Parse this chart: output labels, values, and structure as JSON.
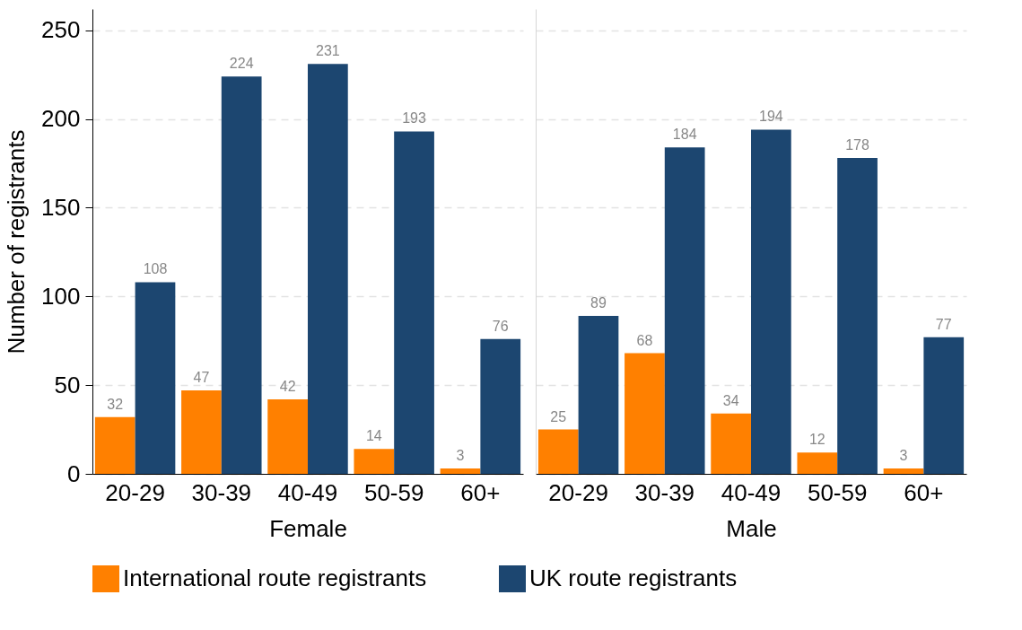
{
  "chart_data": [
    {
      "type": "bar",
      "xlabel": "Female",
      "ylabel": "Number of registrants",
      "categories": [
        "20-29",
        "30-39",
        "40-49",
        "50-59",
        "60+"
      ],
      "series": [
        {
          "name": "International route registrants",
          "color": "#ff8000",
          "values": [
            32,
            47,
            42,
            14,
            3
          ]
        },
        {
          "name": "UK route registrants",
          "color": "#1c4670",
          "values": [
            108,
            224,
            231,
            193,
            76
          ]
        }
      ],
      "ylim": [
        0,
        262
      ],
      "yticks": [
        0,
        50,
        100,
        150,
        200,
        250
      ],
      "grid": "y",
      "legend": "bottom",
      "data_labels": true
    },
    {
      "type": "bar",
      "xlabel": "Male",
      "categories": [
        "20-29",
        "30-39",
        "40-49",
        "50-59",
        "60+"
      ],
      "series": [
        {
          "name": "International route registrants",
          "color": "#ff8000",
          "values": [
            25,
            68,
            34,
            12,
            3
          ]
        },
        {
          "name": "UK route registrants",
          "color": "#1c4670",
          "values": [
            89,
            184,
            194,
            178,
            77
          ]
        }
      ],
      "ylim": [
        0,
        262
      ],
      "yticks": [
        0,
        50,
        100,
        150,
        200,
        250
      ],
      "grid": "y",
      "legend": "bottom",
      "data_labels": true,
      "tick_labels": "x"
    }
  ]
}
